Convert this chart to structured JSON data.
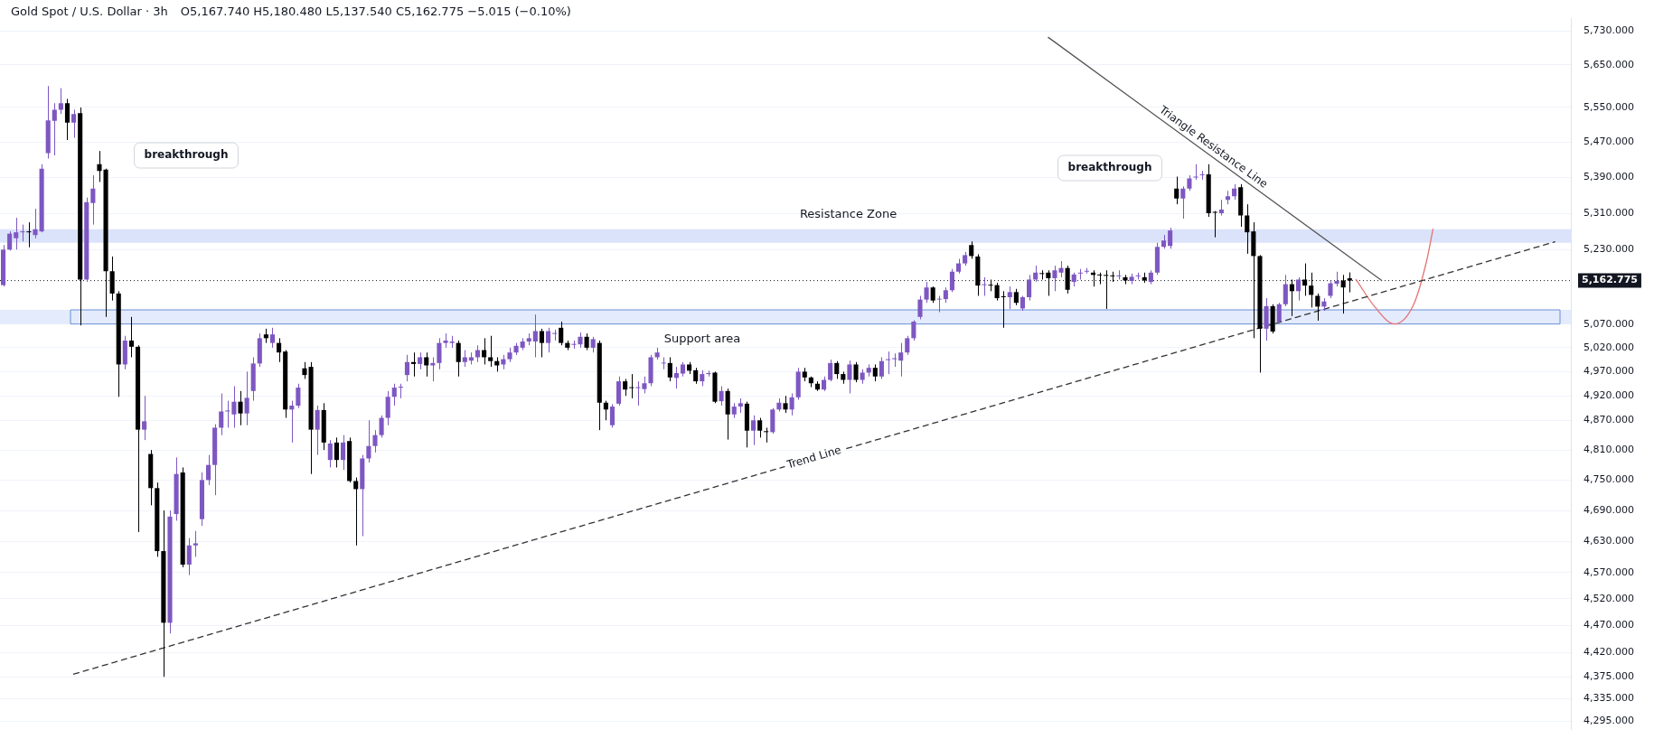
{
  "chart_data": {
    "type": "candlestick",
    "title": "Gold Spot / U.S. Dollar · 3h",
    "subtitle": "O5,167.740 H5,180.480 L5,137.540 C5,162.775 −5.015 (−0.10%)",
    "categories": [
      null,
      null,
      null,
      null,
      null,
      null,
      null,
      null,
      null,
      null,
      null,
      null,
      null,
      null,
      null,
      null,
      null,
      null,
      null,
      null,
      null,
      null,
      null,
      null,
      null,
      null,
      null,
      null,
      null,
      null,
      null,
      null,
      null,
      null,
      null,
      null,
      null,
      null,
      null,
      null,
      null,
      null,
      null,
      null,
      null,
      null,
      null,
      null,
      null,
      null,
      null,
      null,
      null,
      null,
      null,
      null,
      null,
      null,
      null,
      null,
      null,
      null,
      null,
      null,
      null,
      null,
      null,
      null,
      null,
      null,
      null,
      null,
      null,
      null,
      null,
      null,
      null,
      null,
      null,
      null,
      null,
      null,
      null,
      null,
      null,
      null,
      null,
      null,
      null,
      null,
      null,
      null,
      null,
      null,
      null,
      null,
      null,
      null,
      null,
      null,
      null,
      null,
      null,
      null,
      null,
      null,
      null,
      null,
      null,
      null,
      null,
      null,
      null,
      null,
      null,
      null,
      null,
      null,
      null,
      null,
      null,
      null,
      null,
      null,
      null,
      null,
      null,
      null,
      null,
      null,
      null,
      null,
      null,
      null,
      null,
      null,
      null,
      null,
      null,
      null,
      null,
      null,
      null,
      null,
      null,
      null,
      null,
      null,
      null,
      null,
      null,
      null,
      null,
      null,
      null,
      null,
      null,
      null,
      null,
      null,
      null,
      null,
      null,
      null,
      null,
      null,
      null,
      null,
      null,
      null,
      null,
      null,
      null,
      null,
      null,
      null,
      null,
      null,
      null,
      null,
      null,
      null,
      null,
      null,
      null,
      null,
      null,
      null,
      null,
      null,
      null,
      null,
      null,
      null,
      null,
      null,
      null,
      null,
      null,
      null,
      null,
      null,
      null,
      null,
      null,
      null,
      null,
      null,
      null,
      null,
      null,
      null,
      null,
      null,
      null,
      null,
      null,
      null,
      null,
      null,
      null,
      null,
      null,
      null,
      null,
      null,
      null,
      null,
      null,
      null,
      null,
      null,
      null,
      null,
      null,
      null,
      null,
      null,
      null,
      null,
      null,
      null,
      null,
      null,
      null
    ],
    "ohlc": [
      [
        5153,
        5240,
        5150,
        5230
      ],
      [
        5230,
        5270,
        5228,
        5265
      ],
      [
        5255,
        5300,
        5230,
        5268
      ],
      [
        5268,
        5285,
        5248,
        5270
      ],
      [
        5270,
        5290,
        5235,
        5268
      ],
      [
        5262,
        5320,
        5255,
        5275
      ],
      [
        5270,
        5420,
        5268,
        5410
      ],
      [
        5445,
        5600,
        5433,
        5520
      ],
      [
        5519,
        5560,
        5440,
        5545
      ],
      [
        5545,
        5595,
        5535,
        5560
      ],
      [
        5560,
        5570,
        5475,
        5515
      ],
      [
        5515,
        5545,
        5480,
        5535
      ],
      [
        5537,
        5550,
        5067,
        5165
      ],
      [
        5165,
        5345,
        5160,
        5335
      ],
      [
        5333,
        5395,
        5285,
        5365
      ],
      [
        5420,
        5450,
        5380,
        5405
      ],
      [
        5408,
        5410,
        5085,
        5183
      ],
      [
        5183,
        5215,
        5120,
        5135
      ],
      [
        5135,
        5140,
        4918,
        4985
      ],
      [
        4985,
        5045,
        4975,
        5035
      ],
      [
        5035,
        5085,
        5000,
        5022
      ],
      [
        5022,
        5025,
        4648,
        4851
      ],
      [
        4851,
        4920,
        4830,
        4868
      ],
      [
        4802,
        4810,
        4700,
        4734
      ],
      [
        4734,
        4745,
        4600,
        4611
      ],
      [
        4611,
        4690,
        4375,
        4475
      ],
      [
        4475,
        4690,
        4455,
        4678
      ],
      [
        4683,
        4795,
        4670,
        4762
      ],
      [
        4765,
        4775,
        4580,
        4585
      ],
      [
        4585,
        4636,
        4565,
        4622
      ],
      [
        4622,
        4650,
        4600,
        4626
      ],
      [
        4673,
        4765,
        4660,
        4750
      ],
      [
        4750,
        4800,
        4740,
        4780
      ],
      [
        4780,
        4862,
        4720,
        4855
      ],
      [
        4855,
        4925,
        4840,
        4888
      ],
      [
        4888,
        4910,
        4855,
        4890
      ],
      [
        4882,
        4940,
        4855,
        4908
      ],
      [
        4908,
        4930,
        4860,
        4884
      ],
      [
        4884,
        4970,
        4860,
        4916
      ],
      [
        4930,
        5000,
        4910,
        4987
      ],
      [
        4987,
        5050,
        4980,
        5040
      ],
      [
        5048,
        5060,
        5030,
        5040
      ],
      [
        5030,
        5062,
        5020,
        5048
      ],
      [
        5030,
        5040,
        4990,
        5010
      ],
      [
        5012,
        5015,
        4875,
        4892
      ],
      [
        4892,
        4910,
        4825,
        4900
      ],
      [
        4900,
        4945,
        4895,
        4937
      ],
      [
        4977,
        4990,
        4955,
        4963
      ],
      [
        4980,
        4990,
        4762,
        4851
      ],
      [
        4851,
        4900,
        4800,
        4891
      ],
      [
        4891,
        4905,
        4810,
        4825
      ],
      [
        4790,
        4830,
        4775,
        4823
      ],
      [
        4825,
        4835,
        4775,
        4790
      ],
      [
        4790,
        4840,
        4770,
        4825
      ],
      [
        4828,
        4835,
        4745,
        4748
      ],
      [
        4748,
        4755,
        4622,
        4732
      ],
      [
        4732,
        4800,
        4640,
        4793
      ],
      [
        4793,
        4870,
        4785,
        4818
      ],
      [
        4818,
        4850,
        4805,
        4840
      ],
      [
        4840,
        4880,
        4835,
        4875
      ],
      [
        4875,
        4930,
        4860,
        4918
      ],
      [
        4918,
        4945,
        4900,
        4937
      ],
      [
        4937,
        4945,
        4915,
        4939
      ],
      [
        4963,
        5005,
        4950,
        4990
      ],
      [
        4990,
        5010,
        4960,
        4986
      ],
      [
        4986,
        5010,
        4975,
        5000
      ],
      [
        5000,
        5010,
        4960,
        4983
      ],
      [
        4983,
        5000,
        4950,
        4988
      ],
      [
        4988,
        5040,
        4975,
        5030
      ],
      [
        5030,
        5050,
        5020,
        5035
      ],
      [
        5030,
        5045,
        5020,
        5033
      ],
      [
        5030,
        5035,
        4960,
        4990
      ],
      [
        4990,
        5015,
        4980,
        5000
      ],
      [
        4993,
        5010,
        4985,
        5000
      ],
      [
        5000,
        5025,
        4990,
        5015
      ],
      [
        5015,
        5040,
        4985,
        5000
      ],
      [
        5000,
        5045,
        4980,
        4992
      ],
      [
        4992,
        5000,
        4970,
        4983
      ],
      [
        4985,
        5005,
        4975,
        4996
      ],
      [
        4996,
        5020,
        4990,
        5010
      ],
      [
        5010,
        5030,
        5005,
        5024
      ],
      [
        5020,
        5040,
        5015,
        5033
      ],
      [
        5033,
        5050,
        5025,
        5040
      ],
      [
        5033,
        5090,
        5000,
        5055
      ],
      [
        5055,
        5060,
        5000,
        5030
      ],
      [
        5030,
        5062,
        5010,
        5055
      ],
      [
        5049,
        5058,
        5035,
        5050
      ],
      [
        5062,
        5075,
        5025,
        5030
      ],
      [
        5030,
        5035,
        5015,
        5020
      ],
      [
        5026,
        5035,
        5018,
        5028
      ],
      [
        5027,
        5052,
        5020,
        5043
      ],
      [
        5043,
        5050,
        5015,
        5020
      ],
      [
        5020,
        5043,
        5010,
        5038
      ],
      [
        5030,
        5035,
        4850,
        4906
      ],
      [
        4906,
        4910,
        4870,
        4892
      ],
      [
        4860,
        4903,
        4855,
        4898
      ],
      [
        4904,
        4960,
        4900,
        4950
      ],
      [
        4950,
        4955,
        4920,
        4933
      ],
      [
        4937,
        4965,
        4915,
        4936
      ],
      [
        4936,
        4950,
        4900,
        4938
      ],
      [
        4934,
        4960,
        4925,
        4946
      ],
      [
        4946,
        5005,
        4940,
        5000
      ],
      [
        5000,
        5020,
        4995,
        5010
      ],
      [
        4987,
        5000,
        4975,
        4988
      ],
      [
        4988,
        5000,
        4950,
        4958
      ],
      [
        4957,
        4980,
        4935,
        4967
      ],
      [
        4966,
        4990,
        4960,
        4985
      ],
      [
        4985,
        4990,
        4965,
        4972
      ],
      [
        4973,
        4978,
        4945,
        4950
      ],
      [
        4950,
        4973,
        4940,
        4965
      ],
      [
        4965,
        4972,
        4960,
        4967
      ],
      [
        4968,
        4970,
        4905,
        4908
      ],
      [
        4909,
        4940,
        4900,
        4930
      ],
      [
        4930,
        4935,
        4831,
        4882
      ],
      [
        4882,
        4905,
        4875,
        4898
      ],
      [
        4898,
        4915,
        4885,
        4905
      ],
      [
        4904,
        4908,
        4815,
        4849
      ],
      [
        4849,
        4880,
        4820,
        4870
      ],
      [
        4870,
        4875,
        4835,
        4849
      ],
      [
        4848,
        4855,
        4825,
        4846
      ],
      [
        4846,
        4895,
        4843,
        4892
      ],
      [
        4892,
        4915,
        4888,
        4906
      ],
      [
        4905,
        4920,
        4885,
        4892
      ],
      [
        4892,
        4925,
        4880,
        4917
      ],
      [
        4917,
        4978,
        4912,
        4970
      ],
      [
        4970,
        4978,
        4950,
        4958
      ],
      [
        4958,
        4960,
        4938,
        4946
      ],
      [
        4945,
        4950,
        4930,
        4933
      ],
      [
        4933,
        4960,
        4930,
        4953
      ],
      [
        4953,
        4995,
        4950,
        4988
      ],
      [
        4988,
        4992,
        4955,
        4965
      ],
      [
        4965,
        4970,
        4945,
        4953
      ],
      [
        4953,
        4993,
        4925,
        4985
      ],
      [
        4985,
        4990,
        4948,
        4953
      ],
      [
        4953,
        4975,
        4945,
        4968
      ],
      [
        4968,
        4985,
        4960,
        4978
      ],
      [
        4978,
        4985,
        4950,
        4960
      ],
      [
        4960,
        5000,
        4955,
        4992
      ],
      [
        4994,
        5012,
        4965,
        4996
      ],
      [
        4996,
        5008,
        4980,
        4998
      ],
      [
        4993,
        5030,
        4960,
        5010
      ],
      [
        5010,
        5045,
        5005,
        5040
      ],
      [
        5040,
        5078,
        5035,
        5075
      ],
      [
        5085,
        5130,
        5080,
        5122
      ],
      [
        5122,
        5160,
        5115,
        5148
      ],
      [
        5148,
        5150,
        5115,
        5120
      ],
      [
        5122,
        5130,
        5095,
        5123
      ],
      [
        5123,
        5148,
        5115,
        5142
      ],
      [
        5142,
        5188,
        5138,
        5182
      ],
      [
        5182,
        5210,
        5178,
        5200
      ],
      [
        5200,
        5225,
        5195,
        5218
      ],
      [
        5240,
        5248,
        5210,
        5216
      ],
      [
        5215,
        5220,
        5130,
        5152
      ],
      [
        5153,
        5170,
        5130,
        5154
      ],
      [
        5153,
        5165,
        5140,
        5152
      ],
      [
        5153,
        5158,
        5120,
        5125
      ],
      [
        5128,
        5140,
        5062,
        5127
      ],
      [
        5127,
        5150,
        5102,
        5138
      ],
      [
        5138,
        5145,
        5110,
        5115
      ],
      [
        5103,
        5130,
        5098,
        5127
      ],
      [
        5127,
        5175,
        5120,
        5165
      ],
      [
        5165,
        5195,
        5160,
        5180
      ],
      [
        5178,
        5185,
        5165,
        5177
      ],
      [
        5180,
        5185,
        5130,
        5168
      ],
      [
        5168,
        5195,
        5140,
        5185
      ],
      [
        5180,
        5205,
        5170,
        5190
      ],
      [
        5190,
        5195,
        5135,
        5143
      ],
      [
        5160,
        5180,
        5150,
        5176
      ],
      [
        5178,
        5188,
        5165,
        5180
      ],
      [
        5182,
        5190,
        5178,
        5183
      ],
      [
        5180,
        5185,
        5150,
        5175
      ],
      [
        5175,
        5180,
        5155,
        5174
      ],
      [
        5174,
        5185,
        5102,
        5173
      ],
      [
        5173,
        5182,
        5160,
        5172
      ],
      [
        5172,
        5185,
        5165,
        5173
      ],
      [
        5170,
        5175,
        5155,
        5163
      ],
      [
        5162,
        5178,
        5155,
        5171
      ],
      [
        5172,
        5180,
        5165,
        5173
      ],
      [
        5170,
        5180,
        5158,
        5163
      ],
      [
        5160,
        5185,
        5155,
        5180
      ],
      [
        5180,
        5245,
        5175,
        5236
      ],
      [
        5236,
        5262,
        5232,
        5250
      ],
      [
        5238,
        5278,
        5232,
        5272
      ],
      [
        5365,
        5392,
        5330,
        5343
      ],
      [
        5343,
        5370,
        5298,
        5365
      ],
      [
        5365,
        5395,
        5360,
        5388
      ],
      [
        5390,
        5420,
        5385,
        5392
      ],
      [
        5395,
        5405,
        5385,
        5397
      ],
      [
        5397,
        5420,
        5302,
        5310
      ],
      [
        5312,
        5315,
        5257,
        5311
      ],
      [
        5310,
        5340,
        5305,
        5318
      ],
      [
        5340,
        5360,
        5330,
        5348
      ],
      [
        5348,
        5375,
        5340,
        5365
      ],
      [
        5368,
        5375,
        5280,
        5305
      ],
      [
        5305,
        5330,
        5221,
        5268
      ],
      [
        5270,
        5290,
        5040,
        5216
      ],
      [
        5216,
        5218,
        4968,
        5060
      ],
      [
        5060,
        5125,
        5035,
        5108
      ],
      [
        5108,
        5112,
        5050,
        5054
      ],
      [
        5075,
        5115,
        5072,
        5112
      ],
      [
        5112,
        5175,
        5108,
        5155
      ],
      [
        5155,
        5165,
        5087,
        5140
      ],
      [
        5140,
        5170,
        5120,
        5165
      ],
      [
        5165,
        5200,
        5130,
        5152
      ],
      [
        5152,
        5180,
        5105,
        5132
      ],
      [
        5130,
        5135,
        5077,
        5107
      ],
      [
        5107,
        5125,
        5098,
        5118
      ],
      [
        5130,
        5162,
        5125,
        5157
      ],
      [
        5156,
        5182,
        5150,
        5162
      ],
      [
        5163,
        5175,
        5092,
        5148
      ],
      [
        5167.74,
        5180.48,
        5137.54,
        5162.775
      ],
      null,
      null,
      null,
      null,
      null,
      null,
      null,
      null,
      null,
      null,
      null,
      null,
      null,
      null,
      null,
      null,
      null,
      null,
      null,
      null,
      null,
      null,
      null,
      null,
      null,
      null,
      null,
      null,
      null,
      null,
      null,
      null,
      null,
      null
    ],
    "colors": [
      "#7e57c2",
      "#7e57c2",
      "#7e57c2",
      "#7e57c2",
      "#000000",
      "#7e57c2",
      "#7e57c2",
      "#7e57c2",
      "#7e57c2",
      "#7e57c2",
      "#000000",
      "#7e57c2",
      "#000000",
      "#7e57c2",
      "#7e57c2",
      "#000000",
      "#000000",
      "#000000",
      "#000000",
      "#7e57c2",
      "#000000",
      "#000000",
      "#7e57c2",
      "#000000",
      "#000000",
      "#000000",
      "#7e57c2",
      "#7e57c2",
      "#000000",
      "#7e57c2",
      "#7e57c2",
      "#7e57c2",
      "#7e57c2",
      "#7e57c2",
      "#7e57c2",
      "#7e57c2",
      "#7e57c2",
      "#000000",
      "#7e57c2",
      "#7e57c2",
      "#7e57c2",
      "#000000",
      "#7e57c2",
      "#000000",
      "#000000",
      "#7e57c2",
      "#7e57c2",
      "#000000",
      "#000000",
      "#7e57c2",
      "#000000",
      "#7e57c2",
      "#000000",
      "#7e57c2",
      "#000000",
      "#000000",
      "#7e57c2",
      "#7e57c2",
      "#7e57c2",
      "#7e57c2",
      "#7e57c2",
      "#7e57c2",
      "#7e57c2",
      "#7e57c2",
      "#000000",
      "#7e57c2",
      "#000000",
      "#7e57c2",
      "#7e57c2",
      "#7e57c2",
      "#7e57c2",
      "#000000",
      "#7e57c2",
      "#7e57c2",
      "#7e57c2",
      "#000000",
      "#000000",
      "#000000",
      "#7e57c2",
      "#7e57c2",
      "#7e57c2",
      "#7e57c2",
      "#7e57c2",
      "#7e57c2",
      "#000000",
      "#7e57c2",
      "#7e57c2",
      "#000000",
      "#000000",
      "#7e57c2",
      "#7e57c2",
      "#000000",
      "#7e57c2",
      "#000000",
      "#000000",
      "#7e57c2",
      "#7e57c2",
      "#000000",
      "#000000",
      "#7e57c2",
      "#7e57c2",
      "#7e57c2",
      "#7e57c2",
      "#7e57c2",
      "#000000",
      "#7e57c2",
      "#7e57c2",
      "#000000",
      "#000000",
      "#7e57c2",
      "#7e57c2",
      "#000000",
      "#7e57c2",
      "#000000",
      "#7e57c2",
      "#7e57c2",
      "#000000",
      "#7e57c2",
      "#000000",
      "#000000",
      "#7e57c2",
      "#7e57c2",
      "#000000",
      "#7e57c2",
      "#7e57c2",
      "#000000",
      "#000000",
      "#000000",
      "#7e57c2",
      "#7e57c2",
      "#000000",
      "#000000",
      "#7e57c2",
      "#000000",
      "#7e57c2",
      "#7e57c2",
      "#000000",
      "#7e57c2",
      "#7e57c2",
      "#7e57c2",
      "#7e57c2",
      "#7e57c2",
      "#7e57c2",
      "#7e57c2",
      "#7e57c2",
      "#000000",
      "#7e57c2",
      "#7e57c2",
      "#7e57c2",
      "#7e57c2",
      "#7e57c2",
      "#000000",
      "#000000",
      "#7e57c2",
      "#000000",
      "#000000",
      "#000000",
      "#7e57c2",
      "#000000",
      "#7e57c2",
      "#7e57c2",
      "#7e57c2",
      "#000000",
      "#000000",
      "#7e57c2",
      "#7e57c2",
      "#000000",
      "#7e57c2",
      "#7e57c2",
      "#7e57c2",
      "#000000",
      "#000000",
      "#000000",
      "#000000",
      "#7e57c2",
      "#000000",
      "#7e57c2",
      "#7e57c2",
      "#000000",
      "#7e57c2",
      "#7e57c2",
      "#7e57c2",
      "#7e57c2",
      "#000000",
      "#7e57c2",
      "#7e57c2",
      "#7e57c2",
      "#7e57c2",
      "#000000",
      "#000000",
      "#7e57c2",
      "#7e57c2",
      "#7e57c2",
      "#000000",
      "#000000",
      "#000000",
      "#000000",
      "#7e57c2",
      "#000000",
      "#7e57c2",
      "#7e57c2",
      "#000000",
      "#7e57c2",
      "#000000",
      "#000000",
      "#000000",
      "#7e57c2",
      "#7e57c2",
      "#7e57c2",
      "#000000",
      "#000000",
      null,
      null,
      null,
      null,
      null,
      null,
      null,
      null,
      null,
      null,
      null,
      null,
      null,
      null,
      null,
      null,
      null,
      null,
      null,
      null,
      null,
      null,
      null,
      null,
      null,
      null,
      null,
      null,
      null,
      null,
      null,
      null,
      null,
      null
    ],
    "series": [
      {
        "type": "line",
        "name": "Trend Line",
        "color": "#333333",
        "line_style": "dashed",
        "values": [
          null,
          null,
          null,
          null,
          null,
          null,
          null,
          null,
          null,
          null,
          null,
          4380,
          null,
          null,
          null,
          null,
          null,
          null,
          null,
          null,
          null,
          null,
          null,
          null,
          null,
          null,
          null,
          null,
          null,
          null,
          null,
          null,
          null,
          null,
          null,
          null,
          null,
          null,
          null,
          null,
          null,
          null,
          null,
          null,
          null,
          null,
          null,
          null,
          null,
          null,
          null,
          null,
          null,
          null,
          null,
          null,
          null,
          null,
          null,
          null,
          null,
          null,
          null,
          null,
          null,
          null,
          null,
          null,
          null,
          null,
          null,
          null,
          null,
          null,
          null,
          null,
          null,
          null,
          null,
          null,
          null,
          null,
          null,
          null,
          null,
          null,
          null,
          null,
          null,
          null,
          null,
          null,
          null,
          null,
          null,
          null,
          null,
          null,
          null,
          null,
          null,
          null,
          null,
          null,
          null,
          null,
          null,
          null,
          null,
          null,
          null,
          null,
          null,
          null,
          null,
          null,
          null,
          null,
          null,
          null,
          null,
          null,
          null,
          null,
          null,
          null,
          null,
          null,
          null,
          null,
          null,
          null,
          null,
          null,
          null,
          null,
          null,
          null,
          null,
          null,
          null,
          null,
          null,
          null,
          null,
          null,
          null,
          null,
          null,
          null,
          null,
          null,
          null,
          null,
          null,
          null,
          null,
          null,
          null,
          null,
          null,
          null,
          null,
          null,
          null,
          null,
          null,
          null,
          null,
          null,
          null,
          null,
          null,
          null,
          null,
          null,
          null,
          null,
          null,
          null,
          null,
          null,
          null,
          null,
          null,
          null,
          null,
          null,
          null,
          null,
          null,
          null,
          null,
          null,
          null,
          null,
          null,
          null,
          null,
          null,
          null,
          null,
          null,
          null,
          null,
          null,
          null,
          null,
          null,
          null,
          null,
          null,
          null,
          null,
          null,
          null,
          null,
          null,
          null,
          null,
          null,
          null,
          null,
          null,
          null,
          null,
          null,
          null,
          null,
          null,
          null,
          null,
          null,
          null,
          null,
          null,
          null,
          null,
          null,
          null,
          null,
          null,
          5247,
          null,
          null
        ]
      },
      {
        "type": "line",
        "name": "Triangle Resistance Line",
        "color": "#555555",
        "line_style": "solid",
        "values": [
          null,
          null,
          null,
          null,
          null,
          null,
          null,
          null,
          null,
          null,
          null,
          null,
          null,
          null,
          null,
          null,
          null,
          null,
          null,
          null,
          null,
          null,
          null,
          null,
          null,
          null,
          null,
          null,
          null,
          null,
          null,
          null,
          null,
          null,
          null,
          null,
          null,
          null,
          null,
          null,
          null,
          null,
          null,
          null,
          null,
          null,
          null,
          null,
          null,
          null,
          null,
          null,
          null,
          null,
          null,
          null,
          null,
          null,
          null,
          null,
          null,
          null,
          null,
          null,
          null,
          null,
          null,
          null,
          null,
          null,
          null,
          null,
          null,
          null,
          null,
          null,
          null,
          null,
          null,
          null,
          null,
          null,
          null,
          null,
          null,
          null,
          null,
          null,
          null,
          null,
          null,
          null,
          null,
          null,
          null,
          null,
          null,
          null,
          null,
          null,
          null,
          null,
          null,
          null,
          null,
          null,
          null,
          null,
          null,
          null,
          null,
          null,
          null,
          null,
          null,
          null,
          null,
          null,
          null,
          null,
          null,
          null,
          null,
          null,
          null,
          null,
          null,
          null,
          null,
          null,
          null,
          null,
          null,
          null,
          null,
          null,
          null,
          null,
          null,
          null,
          null,
          null,
          null,
          null,
          null,
          null,
          null,
          null,
          null,
          null,
          null,
          null,
          null,
          null,
          null,
          null,
          null,
          null,
          null,
          null,
          null,
          null,
          null,
          5715,
          null,
          null,
          null,
          null,
          null,
          null,
          null,
          null,
          null,
          null,
          null,
          null,
          null,
          null,
          null,
          null,
          null,
          null,
          null,
          null,
          null,
          null,
          null,
          null,
          null,
          null,
          null,
          null,
          null,
          null,
          null,
          null,
          null,
          null,
          null,
          null,
          null,
          null,
          null,
          null,
          null,
          null,
          null,
          null,
          null,
          null,
          null,
          null,
          null,
          null,
          null,
          5163,
          null,
          null,
          null,
          null,
          null,
          null,
          null,
          null,
          null,
          null,
          null,
          null,
          null,
          null,
          null,
          null,
          null,
          null,
          null,
          null,
          null,
          null,
          null,
          null,
          null,
          null,
          null,
          null,
          null
        ]
      },
      {
        "type": "line",
        "color": "#e57373",
        "line_style": "solid",
        "values": [
          null,
          null,
          null,
          null,
          null,
          null,
          null,
          null,
          null,
          null,
          null,
          null,
          null,
          null,
          null,
          null,
          null,
          null,
          null,
          null,
          null,
          null,
          null,
          null,
          null,
          null,
          null,
          null,
          null,
          null,
          null,
          null,
          null,
          null,
          null,
          null,
          null,
          null,
          null,
          null,
          null,
          null,
          null,
          null,
          null,
          null,
          null,
          null,
          null,
          null,
          null,
          null,
          null,
          null,
          null,
          null,
          null,
          null,
          null,
          null,
          null,
          null,
          null,
          null,
          null,
          null,
          null,
          null,
          null,
          null,
          null,
          null,
          null,
          null,
          null,
          null,
          null,
          null,
          null,
          null,
          null,
          null,
          null,
          null,
          null,
          null,
          null,
          null,
          null,
          null,
          null,
          null,
          null,
          null,
          null,
          null,
          null,
          null,
          null,
          null,
          null,
          null,
          null,
          null,
          null,
          null,
          null,
          null,
          null,
          null,
          null,
          null,
          null,
          null,
          null,
          null,
          null,
          null,
          null,
          null,
          null,
          null,
          null,
          null,
          null,
          null,
          null,
          null,
          null,
          null,
          null,
          null,
          null,
          null,
          null,
          null,
          null,
          null,
          null,
          null,
          null,
          null,
          null,
          null,
          null,
          null,
          null,
          null,
          null,
          null,
          null,
          null,
          null,
          null,
          null,
          null,
          null,
          null,
          null,
          null,
          null,
          null,
          null,
          null,
          null,
          null,
          null,
          null,
          null,
          null,
          null,
          null,
          null,
          null,
          null,
          null,
          null,
          null,
          null,
          null,
          null,
          null,
          null,
          null,
          null,
          null,
          null,
          null,
          null,
          null,
          null,
          null,
          null,
          null,
          null,
          null,
          null,
          null,
          null,
          null,
          null,
          null,
          null,
          null,
          null,
          null,
          null,
          null,
          null,
          null,
          null,
          5165,
          null,
          null,
          5105,
          null,
          null,
          5070,
          null,
          null,
          5112,
          null,
          5205,
          5275,
          null,
          null,
          null,
          null,
          null,
          null,
          null,
          null,
          null,
          null,
          null,
          null,
          null,
          null,
          null,
          null,
          null,
          null,
          null,
          null,
          null
        ]
      }
    ],
    "log": true,
    "ylim": [
      4280,
      5760
    ],
    "yticks": [
      {
        "value": 5730,
        "label": "5,730.000"
      },
      {
        "value": 5650,
        "label": "5,650.000"
      },
      {
        "value": 5550,
        "label": "5,550.000"
      },
      {
        "value": 5470,
        "label": "5,470.000"
      },
      {
        "value": 5390,
        "label": "5,390.000"
      },
      {
        "value": 5310,
        "label": "5,310.000"
      },
      {
        "value": 5230,
        "label": "5,230.000"
      },
      {
        "value": 5070,
        "label": "5,070.000"
      },
      {
        "value": 5020,
        "label": "5,020.000"
      },
      {
        "value": 4970,
        "label": "4,970.000"
      },
      {
        "value": 4920,
        "label": "4,920.000"
      },
      {
        "value": 4870,
        "label": "4,870.000"
      },
      {
        "value": 4810,
        "label": "4,810.000"
      },
      {
        "value": 4750,
        "label": "4,750.000"
      },
      {
        "value": 4690,
        "label": "4,690.000"
      },
      {
        "value": 4630,
        "label": "4,630.000"
      },
      {
        "value": 4570,
        "label": "4,570.000"
      },
      {
        "value": 4520,
        "label": "4,520.000"
      },
      {
        "value": 4470,
        "label": "4,470.000"
      },
      {
        "value": 4420,
        "label": "4,420.000"
      },
      {
        "value": 4375,
        "label": "4,375.000"
      },
      {
        "value": 4335,
        "label": "4,335.000"
      },
      {
        "value": 4295,
        "label": "4,295.000"
      }
    ],
    "tick_labels": "y",
    "grid": "y",
    "legend": false,
    "ref_lines": [
      {
        "axis": "y",
        "value": 5162.775,
        "label": "5,162.775",
        "line_style": "dotted",
        "color": "#131722"
      }
    ],
    "bands": [
      {
        "axis": "y",
        "from": 5245,
        "to": 5275,
        "label": "Resistance Zone",
        "color": "#dbe3fb"
      },
      {
        "axis": "y",
        "from": 5070,
        "to": 5100,
        "label": "Support area",
        "color": "#e3ebfc"
      }
    ],
    "annotations": [
      "breakthrough",
      "breakthrough"
    ]
  }
}
